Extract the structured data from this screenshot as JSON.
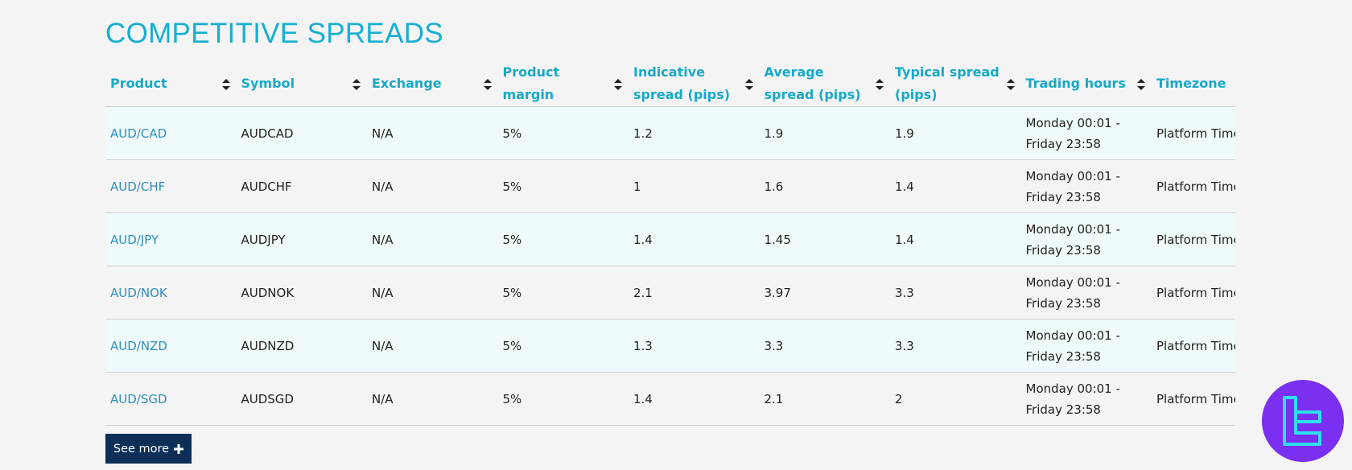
{
  "header": {
    "title": "COMPETITIVE SPREADS"
  },
  "table": {
    "columns": [
      "Product",
      "Symbol",
      "Exchange",
      "Product margin",
      "Indicative spread (pips)",
      "Average spread (pips)",
      "Typical spread (pips)",
      "Trading hours",
      "Timezone"
    ],
    "rows": [
      [
        "AUD/CAD",
        "AUDCAD",
        "N/A",
        "5%",
        "1.2",
        "1.9",
        "1.9",
        "Monday 00:01 - Friday 23:58",
        "Platform Time"
      ],
      [
        "AUD/CHF",
        "AUDCHF",
        "N/A",
        "5%",
        "1",
        "1.6",
        "1.4",
        "Monday 00:01 - Friday 23:58",
        "Platform Time"
      ],
      [
        "AUD/JPY",
        "AUDJPY",
        "N/A",
        "5%",
        "1.4",
        "1.45",
        "1.4",
        "Monday 00:01 - Friday 23:58",
        "Platform Time"
      ],
      [
        "AUD/NOK",
        "AUDNOK",
        "N/A",
        "5%",
        "2.1",
        "3.97",
        "3.3",
        "Monday 00:01 - Friday 23:58",
        "Platform Time"
      ],
      [
        "AUD/NZD",
        "AUDNZD",
        "N/A",
        "5%",
        "1.3",
        "3.3",
        "3.3",
        "Monday 00:01 - Friday 23:58",
        "Platform Time"
      ],
      [
        "AUD/SGD",
        "AUDSGD",
        "N/A",
        "5%",
        "1.4",
        "2.1",
        "2",
        "Monday 00:01 - Friday 23:58",
        "Platform Time"
      ]
    ]
  },
  "button": {
    "label": "See more"
  }
}
